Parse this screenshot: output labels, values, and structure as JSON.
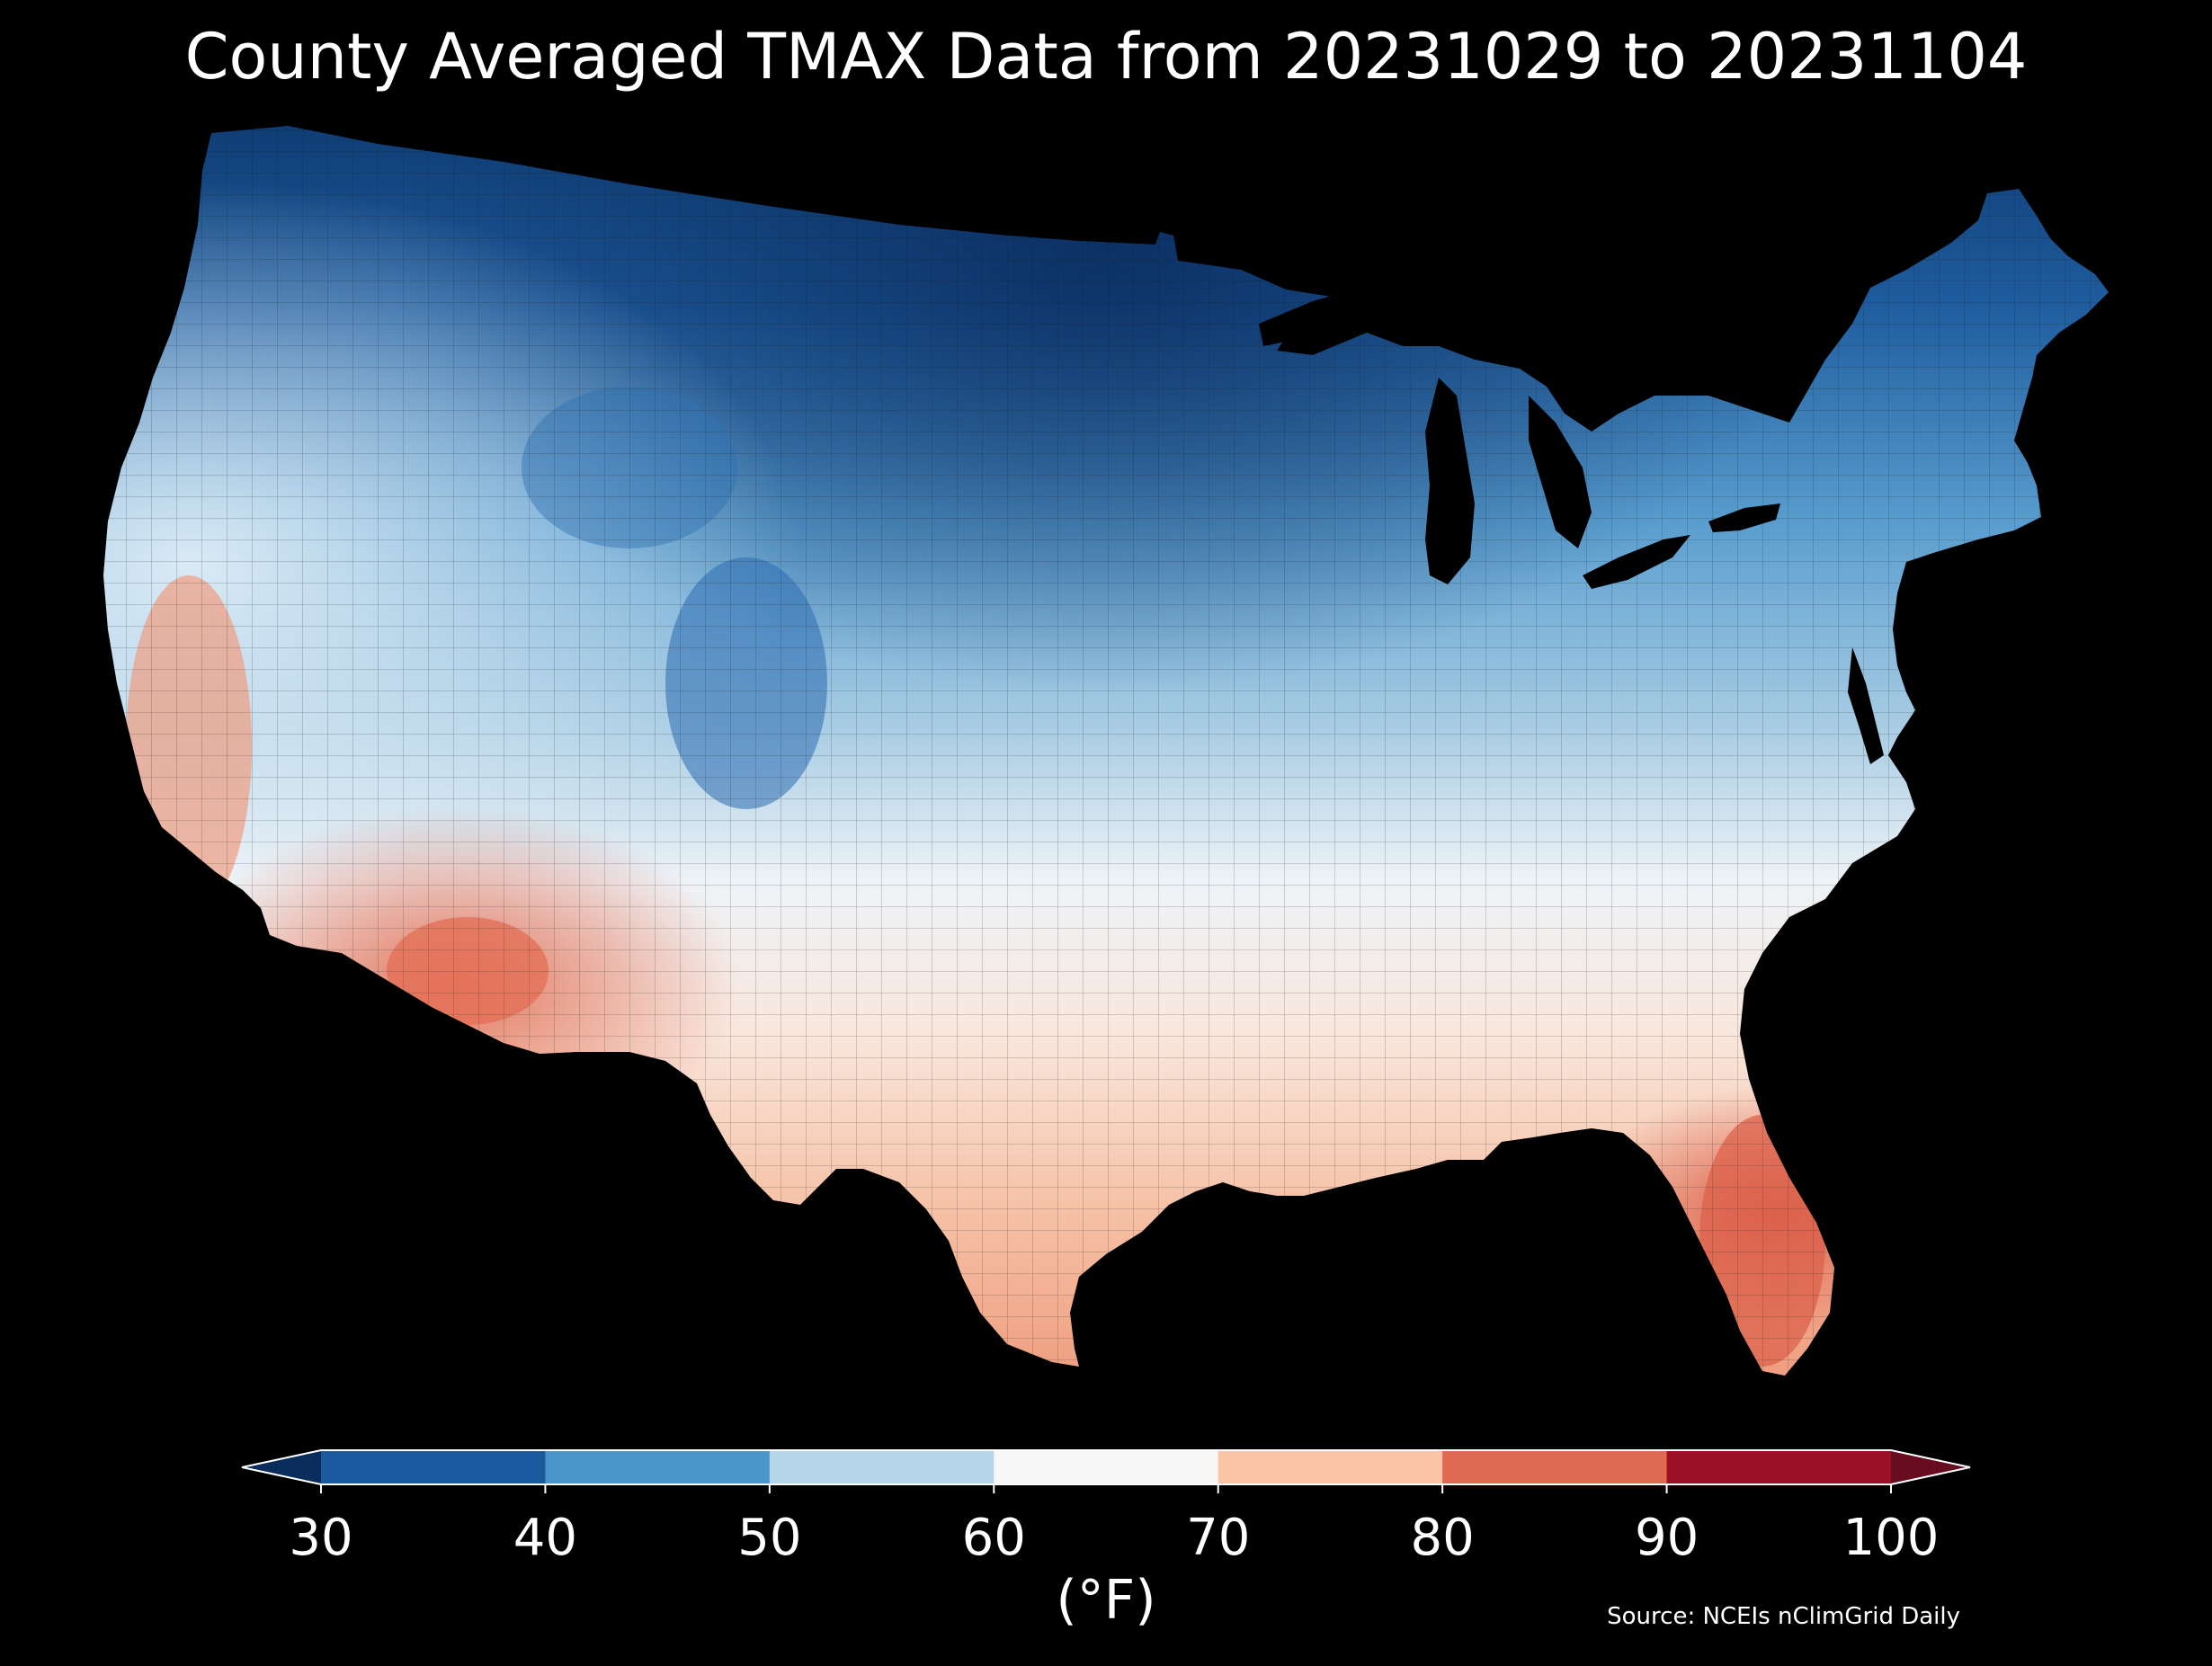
{
  "title": "County Averaged TMAX Data from 20231029 to 20231104",
  "source": "Source: NCEIs nClimGrid Daily",
  "colorbar": {
    "unit": "(°F)",
    "ticks": [
      "30",
      "40",
      "50",
      "60",
      "70",
      "80",
      "90",
      "100"
    ],
    "bins": [
      {
        "range": [
          30,
          40
        ],
        "color": "#1c5aa0"
      },
      {
        "range": [
          40,
          50
        ],
        "color": "#4a96c9"
      },
      {
        "range": [
          50,
          60
        ],
        "color": "#b5d6e9"
      },
      {
        "range": [
          60,
          70
        ],
        "color": "#f7f7f7"
      },
      {
        "range": [
          70,
          80
        ],
        "color": "#fac4a6"
      },
      {
        "range": [
          80,
          90
        ],
        "color": "#df6a52"
      },
      {
        "range": [
          90,
          100
        ],
        "color": "#9b1025"
      }
    ],
    "under_color": "#0b2d5c",
    "over_color": "#670d1f",
    "extend": "both"
  },
  "map": {
    "type": "choropleth",
    "region": "Contiguous United States, counties",
    "variable": "TMAX",
    "regional_pattern": [
      {
        "region": "northern plains / upper midwest",
        "color": "#0e3b72"
      },
      {
        "region": "northern rockies / montana",
        "color": "#2e6fb0"
      },
      {
        "region": "colorado / wyoming high terrain",
        "color": "#2262a8"
      },
      {
        "region": "pacific northwest / great basin",
        "color": "#8fc2df"
      },
      {
        "region": "great lakes / new england",
        "color": "#6aa9d4"
      },
      {
        "region": "central plains / midwest",
        "color": "#7ab4db"
      },
      {
        "region": "southern plains / mid-atlantic",
        "color": "#e8f1f7"
      },
      {
        "region": "southeast / texas",
        "color": "#f8d8c8"
      },
      {
        "region": "coastal california / arizona desert",
        "color": "#eb9d82"
      },
      {
        "region": "southern arizona",
        "color": "#e5785d"
      },
      {
        "region": "florida peninsula",
        "color": "#dd6650"
      }
    ]
  }
}
